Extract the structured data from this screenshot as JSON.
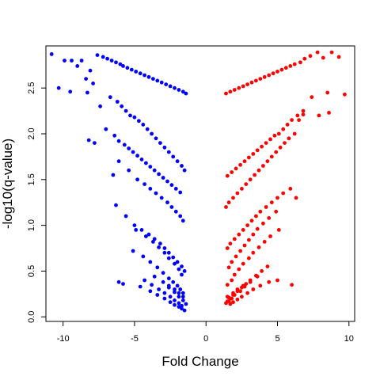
{
  "chart_data": {
    "type": "scatter",
    "title": "",
    "xlabel": "Fold Change",
    "ylabel": "-log10(q-value)",
    "xlim": [
      -11.2,
      10.4
    ],
    "ylim": [
      -0.05,
      2.96
    ],
    "xticks": [
      -10,
      -5,
      0,
      5,
      10
    ],
    "yticks": [
      0.0,
      0.5,
      1.0,
      1.5,
      2.0,
      2.5
    ],
    "xtick_labels": [
      "-10",
      "-5",
      "0",
      "5",
      "10"
    ],
    "ytick_labels": [
      "0.0",
      "0.5",
      "1.0",
      "1.5",
      "2.0",
      "2.5"
    ],
    "grid": false,
    "legend": "none",
    "series": [
      {
        "color": "#0000ff",
        "x": [
          -10.8,
          -9.9,
          -9.4,
          -9.0,
          -10.3,
          -9.5,
          -8.7,
          -8.1,
          -8.4,
          -7.9,
          -8.3,
          -7.6,
          -7.2,
          -6.9,
          -6.6,
          -6.3,
          -6.0,
          -5.8,
          -5.5,
          -5.2,
          -4.9,
          -4.6,
          -4.3,
          -4.0,
          -3.7,
          -3.4,
          -3.1,
          -2.8,
          -2.5,
          -2.2,
          -1.9,
          -1.6,
          -1.4,
          -7.4,
          -6.7,
          -6.2,
          -5.9,
          -5.6,
          -5.3,
          -5.0,
          -4.7,
          -4.4,
          -4.1,
          -3.8,
          -3.5,
          -3.2,
          -2.9,
          -2.6,
          -2.3,
          -2.0,
          -1.7,
          -1.5,
          -8.2,
          -7.8,
          -7.0,
          -6.4,
          -6.1,
          -5.7,
          -5.4,
          -5.1,
          -4.8,
          -4.5,
          -4.2,
          -3.9,
          -3.6,
          -3.3,
          -3.0,
          -2.7,
          -2.4,
          -2.1,
          -1.8,
          -6.1,
          -5.4,
          -4.8,
          -4.3,
          -3.9,
          -3.5,
          -3.1,
          -2.7,
          -2.4,
          -2.1,
          -1.8,
          -1.6,
          -6.5,
          -6.3,
          -5.6,
          -5.0,
          -4.5,
          -4.0,
          -3.6,
          -3.2,
          -2.9,
          -2.6,
          -2.3,
          -2.0,
          -1.7,
          -1.5,
          -4.9,
          -4.2,
          -3.7,
          -3.3,
          -2.9,
          -2.6,
          -2.2,
          -1.9,
          -1.7,
          -5.1,
          -4.4,
          -3.9,
          -3.4,
          -3.0,
          -2.6,
          -2.3,
          -2.0,
          -1.8,
          -1.6,
          -4.3,
          -3.8,
          -3.3,
          -2.9,
          -2.5,
          -2.2,
          -1.9,
          -1.7,
          -6.1,
          -5.8,
          -4.6,
          -3.9,
          -3.4,
          -2.9,
          -2.5,
          -2.2,
          -1.9,
          -1.7,
          -1.5,
          -3.6,
          -3.0,
          -2.6,
          -2.2,
          -1.9,
          -1.6,
          -1.4,
          -2.6,
          -2.2,
          -1.9,
          -1.6
        ],
        "y": [
          2.87,
          2.8,
          2.8,
          2.74,
          2.5,
          2.46,
          2.8,
          2.69,
          2.6,
          2.55,
          2.45,
          2.86,
          2.84,
          2.82,
          2.8,
          2.78,
          2.76,
          2.74,
          2.72,
          2.7,
          2.68,
          2.66,
          2.64,
          2.62,
          2.6,
          2.58,
          2.56,
          2.54,
          2.52,
          2.5,
          2.48,
          2.46,
          2.44,
          2.3,
          2.4,
          2.35,
          2.3,
          2.25,
          2.2,
          2.18,
          2.14,
          2.1,
          2.05,
          2.0,
          1.95,
          1.9,
          1.85,
          1.8,
          1.75,
          1.7,
          1.65,
          1.6,
          1.93,
          1.9,
          2.05,
          1.98,
          1.92,
          1.88,
          1.84,
          1.8,
          1.76,
          1.72,
          1.68,
          1.64,
          1.6,
          1.56,
          1.52,
          1.48,
          1.44,
          1.4,
          1.36,
          1.7,
          1.6,
          1.5,
          1.45,
          1.4,
          1.35,
          1.3,
          1.25,
          1.2,
          1.15,
          1.1,
          1.05,
          1.55,
          1.22,
          1.1,
          1.0,
          0.95,
          0.9,
          0.85,
          0.8,
          0.75,
          0.7,
          0.65,
          0.6,
          0.55,
          0.5,
          0.95,
          0.88,
          0.82,
          0.76,
          0.7,
          0.64,
          0.58,
          0.52,
          0.46,
          0.72,
          0.66,
          0.6,
          0.54,
          0.48,
          0.42,
          0.38,
          0.34,
          0.3,
          0.26,
          0.4,
          0.35,
          0.3,
          0.26,
          0.22,
          0.18,
          0.15,
          0.12,
          0.38,
          0.36,
          0.33,
          0.28,
          0.24,
          0.2,
          0.16,
          0.13,
          0.11,
          0.09,
          0.07,
          0.44,
          0.38,
          0.32,
          0.27,
          0.22,
          0.18,
          0.14,
          0.34,
          0.3,
          0.26,
          0.22
        ]
      },
      {
        "color": "#ff0000",
        "x": [
          8.8,
          9.3,
          9.7,
          8.2,
          7.8,
          7.3,
          6.9,
          6.6,
          6.2,
          5.9,
          5.6,
          5.3,
          5.0,
          4.7,
          4.4,
          4.1,
          3.8,
          3.5,
          3.2,
          2.9,
          2.6,
          2.3,
          2.0,
          1.7,
          1.4,
          8.6,
          7.9,
          7.4,
          8.5,
          6.8,
          6.4,
          6.0,
          5.7,
          5.4,
          5.1,
          4.8,
          4.5,
          4.2,
          3.9,
          3.6,
          3.3,
          3.0,
          2.7,
          2.4,
          2.1,
          1.8,
          1.5,
          6.8,
          6.5,
          6.2,
          5.8,
          5.5,
          5.2,
          4.9,
          4.6,
          4.3,
          4.0,
          3.7,
          3.4,
          3.1,
          2.8,
          2.5,
          2.2,
          1.9,
          1.6,
          1.4,
          6.3,
          5.9,
          5.4,
          5.0,
          4.6,
          4.2,
          3.8,
          3.5,
          3.2,
          2.9,
          2.6,
          2.3,
          2.0,
          1.7,
          1.5,
          4.9,
          4.4,
          4.0,
          3.6,
          3.3,
          3.0,
          2.7,
          2.4,
          2.1,
          1.8,
          1.6,
          5.1,
          4.5,
          4.1,
          3.7,
          3.3,
          3.0,
          2.6,
          2.3,
          2.0,
          1.8,
          1.5,
          4.3,
          3.9,
          3.5,
          3.1,
          2.8,
          2.5,
          2.2,
          1.9,
          1.7,
          1.5,
          6.0,
          5.0,
          4.4,
          3.8,
          3.3,
          2.9,
          2.5,
          2.2,
          1.9,
          1.7,
          1.5,
          3.6,
          3.1,
          2.7,
          2.4,
          2.0,
          1.8,
          1.6,
          1.4,
          2.6,
          2.2,
          1.9,
          1.6
        ],
        "y": [
          2.89,
          2.84,
          2.43,
          2.83,
          2.89,
          2.85,
          2.82,
          2.78,
          2.76,
          2.74,
          2.72,
          2.7,
          2.68,
          2.66,
          2.64,
          2.62,
          2.6,
          2.58,
          2.56,
          2.54,
          2.52,
          2.5,
          2.48,
          2.46,
          2.44,
          2.23,
          2.2,
          2.4,
          2.45,
          2.25,
          2.2,
          2.15,
          2.1,
          2.05,
          2.0,
          1.98,
          1.94,
          1.9,
          1.86,
          1.82,
          1.78,
          1.74,
          1.7,
          1.66,
          1.62,
          1.58,
          1.54,
          2.21,
          2.15,
          2.0,
          1.95,
          1.9,
          1.85,
          1.8,
          1.75,
          1.7,
          1.65,
          1.6,
          1.55,
          1.5,
          1.45,
          1.4,
          1.35,
          1.3,
          1.25,
          1.2,
          1.3,
          1.4,
          1.35,
          1.3,
          1.25,
          1.2,
          1.15,
          1.1,
          1.05,
          1.0,
          0.95,
          0.9,
          0.85,
          0.8,
          0.75,
          1.15,
          1.08,
          1.02,
          0.96,
          0.9,
          0.84,
          0.78,
          0.72,
          0.66,
          0.6,
          0.54,
          0.95,
          0.88,
          0.82,
          0.76,
          0.7,
          0.64,
          0.58,
          0.52,
          0.46,
          0.4,
          0.35,
          0.55,
          0.5,
          0.45,
          0.4,
          0.36,
          0.32,
          0.28,
          0.24,
          0.2,
          0.17,
          0.35,
          0.4,
          0.38,
          0.34,
          0.3,
          0.26,
          0.22,
          0.19,
          0.16,
          0.14,
          0.22,
          0.44,
          0.38,
          0.33,
          0.28,
          0.24,
          0.2,
          0.17,
          0.15,
          0.34,
          0.3,
          0.26,
          0.21
        ]
      }
    ]
  }
}
